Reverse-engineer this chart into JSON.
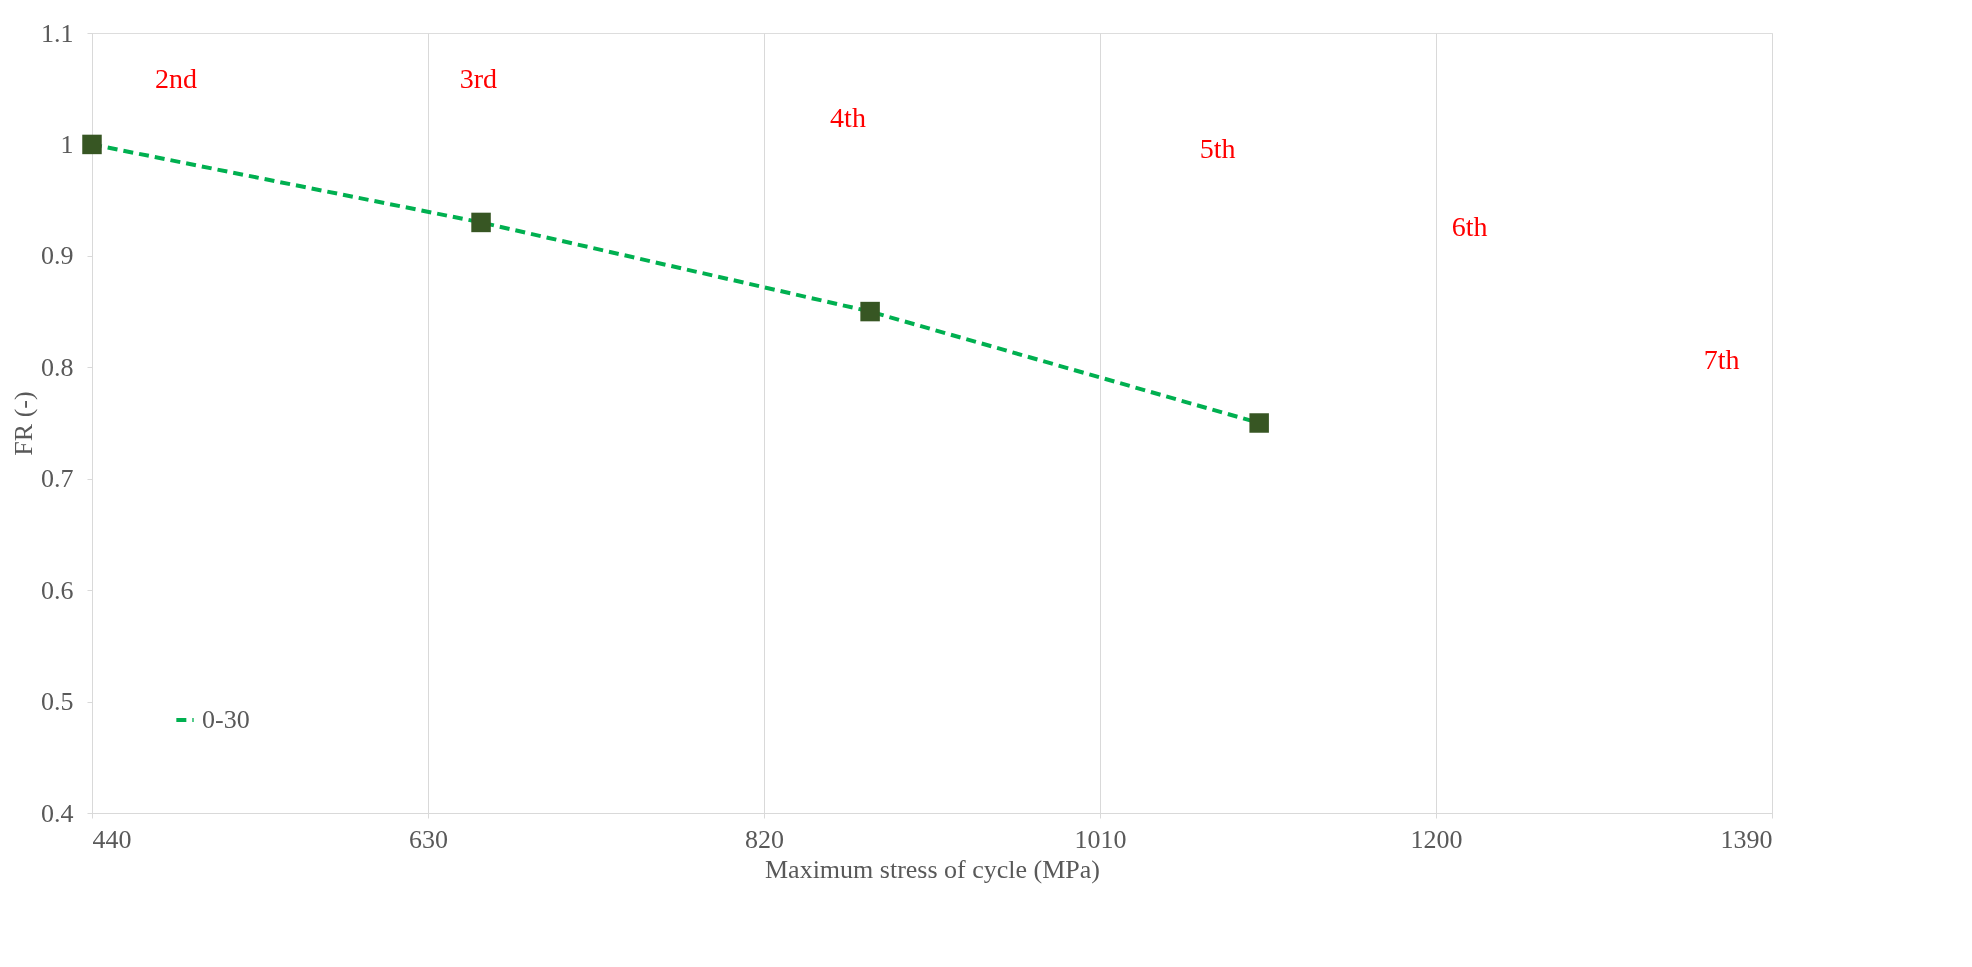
{
  "chart_data": {
    "type": "line",
    "xlabel": "Maximum stress of cycle (MPa)",
    "ylabel": "FR (-)",
    "x": [
      440,
      660,
      880,
      1100
    ],
    "series": [
      {
        "name": "0-30",
        "color": "#00b050",
        "values": [
          1.0,
          0.93,
          0.85,
          0.75
        ]
      }
    ],
    "xlim": [
      440,
      1390
    ],
    "xticks": [
      440,
      630,
      820,
      1010,
      1200,
      1390
    ],
    "ylim": [
      0.4,
      1.1
    ],
    "yticks": [
      0.4,
      0.5,
      0.6,
      0.7,
      0.8,
      0.9,
      1,
      1.1
    ],
    "grid": "x",
    "legend": "bottom left",
    "marker": "square",
    "line_style": "dashed",
    "annotations": [
      "2nd",
      "3rd",
      "4th",
      "5th",
      "6th",
      "7th"
    ]
  }
}
